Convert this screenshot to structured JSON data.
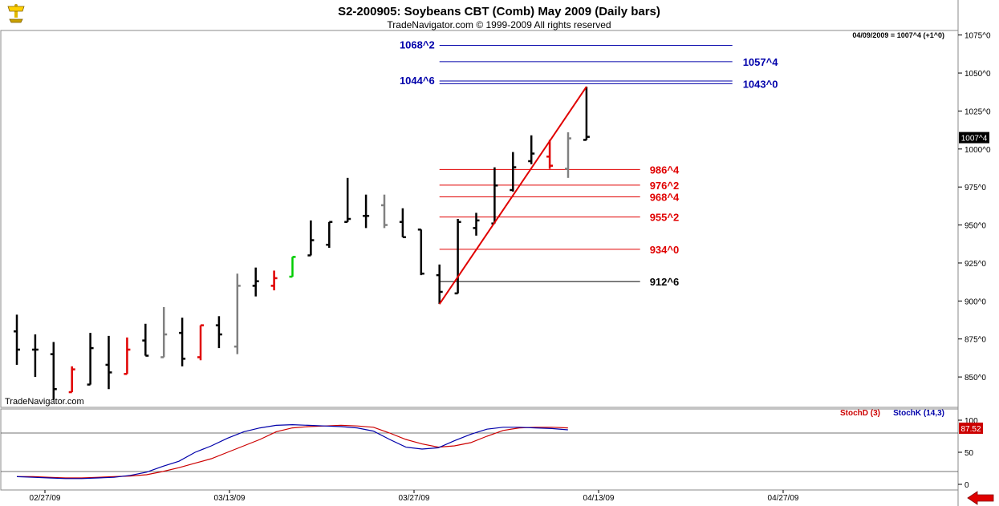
{
  "header": {
    "title": "S2-200905:  Soybeans CBT (Comb) May 2009  (Daily bars)",
    "copyright": "TradeNavigator.com © 1999-2009 All rights reserved",
    "status": "04/09/2009 = 1007^4 (+1^0)",
    "watermark": "TradeNavigator.com",
    "logo_icon": "trophy-icon",
    "nav_icon": "arrow-left-icon"
  },
  "colors": {
    "up": "#000000",
    "down_red": "#e00000",
    "neutral_gray": "#808080",
    "highlight_green": "#00cc00",
    "blue_level": "#0000aa",
    "red_level": "#e00000",
    "stoch_d": "#cc0000",
    "stoch_k": "#0000aa"
  },
  "chart_data": [
    {
      "type": "bar",
      "subtype": "ohlc",
      "y_scale": {
        "min": 830,
        "max": 1078
      },
      "price_ticks": [
        "1075^0",
        "1050^0",
        "1025^0",
        "1000^0",
        "975^0",
        "950^0",
        "925^0",
        "900^0",
        "875^0",
        "850^0"
      ],
      "price_tick_values": [
        1075,
        1050,
        1025,
        1000,
        975,
        950,
        925,
        900,
        875,
        850
      ],
      "last_price_label": "1007^4",
      "last_price": 1007.5,
      "date_ticks": [
        "02/27/09",
        "03/13/09",
        "03/27/09",
        "04/13/09",
        "04/27/09"
      ],
      "date_tick_index": [
        0,
        10,
        20,
        30,
        40
      ],
      "bars": [
        {
          "i": 0,
          "o": 880,
          "h": 891,
          "l": 858,
          "c": 868,
          "color": "black"
        },
        {
          "i": 1,
          "o": 868,
          "h": 878,
          "l": 850,
          "c": 868,
          "color": "black"
        },
        {
          "i": 2,
          "o": 865,
          "h": 873,
          "l": 835,
          "c": 842,
          "color": "black"
        },
        {
          "i": 3,
          "o": 840,
          "h": 857,
          "l": 840,
          "c": 855,
          "color": "red"
        },
        {
          "i": 4,
          "o": 845,
          "h": 879,
          "l": 845,
          "c": 869,
          "color": "black"
        },
        {
          "i": 5,
          "o": 858,
          "h": 877,
          "l": 842,
          "c": 853,
          "color": "black"
        },
        {
          "i": 6,
          "o": 852,
          "h": 876,
          "l": 852,
          "c": 868,
          "color": "red"
        },
        {
          "i": 7,
          "o": 874,
          "h": 885,
          "l": 864,
          "c": 864,
          "color": "black"
        },
        {
          "i": 8,
          "o": 863,
          "h": 896,
          "l": 863,
          "c": 878,
          "color": "gray"
        },
        {
          "i": 9,
          "o": 879,
          "h": 889,
          "l": 857,
          "c": 862,
          "color": "black"
        },
        {
          "i": 10,
          "o": 863,
          "h": 884,
          "l": 861,
          "c": 884,
          "color": "red"
        },
        {
          "i": 11,
          "o": 884,
          "h": 890,
          "l": 869,
          "c": 878,
          "color": "black"
        },
        {
          "i": 12,
          "o": 870,
          "h": 918,
          "l": 865,
          "c": 910,
          "color": "gray"
        },
        {
          "i": 13,
          "o": 910,
          "h": 922,
          "l": 903,
          "c": 913,
          "color": "black"
        },
        {
          "i": 14,
          "o": 910,
          "h": 920,
          "l": 907,
          "c": 915,
          "color": "red"
        },
        {
          "i": 15,
          "o": 916,
          "h": 929,
          "l": 916,
          "c": 929,
          "color": "green"
        },
        {
          "i": 16,
          "o": 930,
          "h": 953,
          "l": 930,
          "c": 940,
          "color": "black"
        },
        {
          "i": 17,
          "o": 937,
          "h": 952,
          "l": 935,
          "c": 952,
          "color": "black"
        },
        {
          "i": 18,
          "o": 952,
          "h": 981,
          "l": 952,
          "c": 954,
          "color": "black"
        },
        {
          "i": 19,
          "o": 956,
          "h": 970,
          "l": 948,
          "c": 956,
          "color": "black"
        },
        {
          "i": 20,
          "o": 963,
          "h": 970,
          "l": 948,
          "c": 950,
          "color": "gray"
        },
        {
          "i": 21,
          "o": 952,
          "h": 961,
          "l": 942,
          "c": 942,
          "color": "black"
        },
        {
          "i": 22,
          "o": 947,
          "h": 947,
          "l": 917,
          "c": 918,
          "color": "black"
        },
        {
          "i": 23,
          "o": 917,
          "h": 924,
          "l": 898,
          "c": 906,
          "color": "black"
        },
        {
          "i": 24,
          "o": 905,
          "h": 954,
          "l": 905,
          "c": 952,
          "color": "black"
        },
        {
          "i": 25,
          "o": 948,
          "h": 958,
          "l": 943,
          "c": 953,
          "color": "black"
        },
        {
          "i": 26,
          "o": 951,
          "h": 988,
          "l": 951,
          "c": 976,
          "color": "black"
        },
        {
          "i": 27,
          "o": 973,
          "h": 998,
          "l": 972,
          "c": 988,
          "color": "black"
        },
        {
          "i": 28,
          "o": 992,
          "h": 1009,
          "l": 990,
          "c": 997,
          "color": "black"
        },
        {
          "i": 29,
          "o": 995,
          "h": 1006,
          "l": 987,
          "c": 989,
          "color": "red"
        },
        {
          "i": 30,
          "o": 987,
          "h": 1011,
          "l": 981,
          "c": 1007,
          "color": "gray"
        },
        {
          "i": 31,
          "o": 1006,
          "h": 1041,
          "l": 1006,
          "c": 1008,
          "color": "black"
        }
      ],
      "trendline": {
        "from_index": 23,
        "from_price": 898,
        "to_index": 31,
        "to_price": 1041,
        "color": "#e00000"
      },
      "levels": [
        {
          "label": "1068^2",
          "price": 1068.25,
          "color": "blue",
          "label_side": "left",
          "from_index": 23,
          "to_index": 40
        },
        {
          "label": "1057^4",
          "price": 1057.5,
          "color": "blue",
          "label_side": "right",
          "from_index": 23,
          "to_index": 40
        },
        {
          "label": "1044^6",
          "price": 1044.75,
          "color": "blue",
          "label_side": "left",
          "from_index": 23,
          "to_index": 40
        },
        {
          "label": "1043^0",
          "price": 1043.0,
          "color": "blue",
          "label_side": "right",
          "from_index": 23,
          "to_index": 40
        },
        {
          "label": "986^4",
          "price": 986.5,
          "color": "red",
          "label_side": "right",
          "from_index": 23,
          "to_index": 34
        },
        {
          "label": "976^2",
          "price": 976.25,
          "color": "red",
          "label_side": "right",
          "from_index": 23,
          "to_index": 34
        },
        {
          "label": "968^4",
          "price": 968.5,
          "color": "red",
          "label_side": "right",
          "from_index": 23,
          "to_index": 34
        },
        {
          "label": "955^2",
          "price": 955.25,
          "color": "red",
          "label_side": "right",
          "from_index": 23,
          "to_index": 34
        },
        {
          "label": "934^0",
          "price": 934.0,
          "color": "red",
          "label_side": "right",
          "from_index": 23,
          "to_index": 34
        },
        {
          "label": "912^6",
          "price": 912.75,
          "color": "black",
          "label_side": "right",
          "from_index": 23,
          "to_index": 34
        }
      ]
    },
    {
      "type": "line",
      "name": "stochastic",
      "y_scale": {
        "min": 0,
        "max": 100
      },
      "ticks": [
        "100",
        "50",
        "0"
      ],
      "tick_values": [
        100,
        50,
        0
      ],
      "reference_lines": [
        80,
        20
      ],
      "last_value_label": "87.52",
      "last_value": 87.52,
      "series": [
        {
          "name": "StochD (3)",
          "color": "#cc0000",
          "values": [
            12,
            12,
            11,
            10,
            10,
            11,
            12,
            13,
            15,
            20,
            26,
            33,
            40,
            50,
            60,
            70,
            82,
            88,
            90,
            91,
            92,
            91,
            89,
            80,
            70,
            63,
            58,
            60,
            65,
            75,
            84,
            88,
            89,
            89,
            88
          ]
        },
        {
          "name": "StochK (14,3)",
          "color": "#0000aa",
          "values": [
            12,
            11,
            10,
            9,
            9,
            10,
            11,
            14,
            19,
            28,
            36,
            50,
            60,
            72,
            82,
            88,
            92,
            93,
            92,
            91,
            90,
            88,
            83,
            70,
            58,
            55,
            57,
            68,
            78,
            86,
            89,
            89,
            88,
            87,
            85
          ]
        }
      ]
    }
  ]
}
